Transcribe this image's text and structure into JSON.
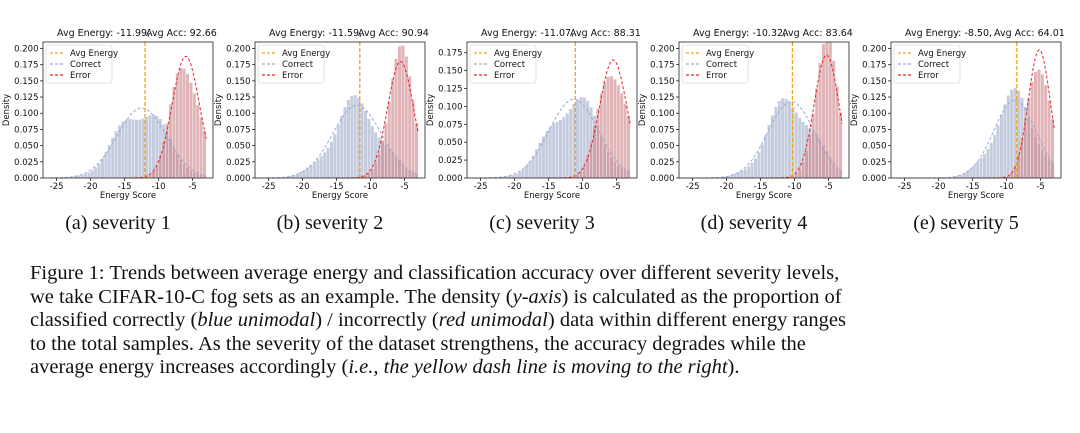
{
  "colors": {
    "correct_fill": "#b4bed5",
    "error_fill": "#cf888d",
    "correct_line": "#9aa9d6",
    "error_line": "#e0282b",
    "avg_energy_line": "#f0a41e",
    "axis": "#222222"
  },
  "chart_data": [
    {
      "type": "bar",
      "subcaption": "(a) severity 1",
      "annotation_energy": "Avg Energy: -11.99,",
      "annotation_acc": "Avg Acc: 92.66",
      "avg_energy": -11.99,
      "avg_acc": 92.66,
      "xlabel": "Energy Score",
      "ylabel": "Density",
      "xlim": [
        -27,
        -2
      ],
      "ylim": [
        0,
        0.21
      ],
      "xticks": [
        -25,
        -20,
        -15,
        -10,
        -5
      ],
      "yticks": [
        0.0,
        0.025,
        0.05,
        0.075,
        0.1,
        0.125,
        0.15,
        0.175,
        0.2
      ],
      "ytick_labels": [
        "0.000",
        "0.025",
        "0.050",
        "0.075",
        "0.100",
        "0.125",
        "0.150",
        "0.175",
        "0.200"
      ],
      "legend": [
        "Avg Energy",
        "Correct",
        "Error"
      ],
      "legend_position": "top-left",
      "series": [
        {
          "name": "Correct",
          "mean": -12.5,
          "sd": 3.6,
          "peak": 0.108,
          "range": [
            -26,
            -3
          ]
        },
        {
          "name": "Error",
          "mean": -6.0,
          "sd": 2.0,
          "peak": 0.188,
          "range": [
            -15,
            -3
          ]
        }
      ]
    },
    {
      "type": "bar",
      "subcaption": "(b) severity 2",
      "annotation_energy": "Avg Energy: -11.59,",
      "annotation_acc": "Avg Acc: 90.94",
      "avg_energy": -11.59,
      "avg_acc": 90.94,
      "xlabel": "Energy Score",
      "ylabel": "Density",
      "xlim": [
        -27,
        -2
      ],
      "ylim": [
        0,
        0.21
      ],
      "xticks": [
        -25,
        -20,
        -15,
        -10,
        -5
      ],
      "yticks": [
        0.0,
        0.025,
        0.05,
        0.075,
        0.1,
        0.125,
        0.15,
        0.175,
        0.2
      ],
      "ytick_labels": [
        "0.000",
        "0.025",
        "0.050",
        "0.075",
        "0.100",
        "0.125",
        "0.150",
        "0.175",
        "0.200"
      ],
      "legend": [
        "Avg Energy",
        "Correct",
        "Error"
      ],
      "legend_position": "top-left",
      "series": [
        {
          "name": "Correct",
          "mean": -12.0,
          "sd": 3.6,
          "peak": 0.112,
          "range": [
            -26,
            -3
          ]
        },
        {
          "name": "Error",
          "mean": -5.6,
          "sd": 1.9,
          "peak": 0.18,
          "range": [
            -15,
            -3
          ]
        }
      ]
    },
    {
      "type": "bar",
      "subcaption": "(c) severity 3",
      "annotation_energy": "Avg Energy: -11.07,",
      "annotation_acc": "Avg Acc: 88.31",
      "avg_energy": -11.07,
      "avg_acc": 88.31,
      "xlabel": "Energy Score",
      "ylabel": "Density",
      "xlim": [
        -27,
        -2
      ],
      "ylim": [
        0,
        0.19
      ],
      "xticks": [
        -25,
        -20,
        -15,
        -10,
        -5
      ],
      "yticks": [
        0.0,
        0.025,
        0.05,
        0.075,
        0.1,
        0.125,
        0.15,
        0.175
      ],
      "ytick_labels": [
        "0.000",
        "0.025",
        "0.050",
        "0.075",
        "0.100",
        "0.125",
        "0.150",
        "0.175"
      ],
      "legend": [
        "Avg Energy",
        "Correct",
        "Error"
      ],
      "legend_position": "top-left",
      "series": [
        {
          "name": "Correct",
          "mean": -11.3,
          "sd": 3.6,
          "peak": 0.11,
          "range": [
            -26,
            -3
          ]
        },
        {
          "name": "Error",
          "mean": -5.5,
          "sd": 2.0,
          "peak": 0.165,
          "range": [
            -15,
            -3
          ]
        }
      ]
    },
    {
      "type": "bar",
      "subcaption": "(d) severity 4",
      "annotation_energy": "Avg Energy: -10.32,",
      "annotation_acc": "Avg Acc: 83.64",
      "avg_energy": -10.32,
      "avg_acc": 83.64,
      "xlabel": "Energy Score",
      "ylabel": "Density",
      "xlim": [
        -27,
        -2
      ],
      "ylim": [
        0,
        0.21
      ],
      "xticks": [
        -25,
        -20,
        -15,
        -10,
        -5
      ],
      "yticks": [
        0.0,
        0.025,
        0.05,
        0.075,
        0.1,
        0.125,
        0.15,
        0.175,
        0.2
      ],
      "ytick_labels": [
        "0.000",
        "0.025",
        "0.050",
        "0.075",
        "0.100",
        "0.125",
        "0.150",
        "0.175",
        "0.200"
      ],
      "legend": [
        "Avg Energy",
        "Correct",
        "Error"
      ],
      "legend_position": "top-left",
      "series": [
        {
          "name": "Correct",
          "mean": -10.5,
          "sd": 3.4,
          "peak": 0.118,
          "range": [
            -26,
            -3
          ]
        },
        {
          "name": "Error",
          "mean": -5.3,
          "sd": 1.8,
          "peak": 0.19,
          "range": [
            -15,
            -3
          ]
        }
      ]
    },
    {
      "type": "bar",
      "subcaption": "(e) severity 5",
      "annotation_energy": "Avg Energy: -8.50,",
      "annotation_acc": "Avg Acc: 64.01",
      "avg_energy": -8.5,
      "avg_acc": 64.01,
      "xlabel": "Energy Score",
      "ylabel": "Density",
      "xlim": [
        -27,
        -2
      ],
      "ylim": [
        0,
        0.21
      ],
      "xticks": [
        -25,
        -20,
        -15,
        -10,
        -5
      ],
      "yticks": [
        0.0,
        0.025,
        0.05,
        0.075,
        0.1,
        0.125,
        0.15,
        0.175,
        0.2
      ],
      "ytick_labels": [
        "0.000",
        "0.025",
        "0.050",
        "0.075",
        "0.100",
        "0.125",
        "0.150",
        "0.175",
        "0.200"
      ],
      "legend": [
        "Avg Energy",
        "Correct",
        "Error"
      ],
      "legend_position": "top-left",
      "series": [
        {
          "name": "Correct",
          "mean": -8.8,
          "sd": 3.1,
          "peak": 0.12,
          "range": [
            -26,
            -3
          ]
        },
        {
          "name": "Error",
          "mean": -5.2,
          "sd": 1.6,
          "peak": 0.198,
          "range": [
            -15,
            -3
          ]
        }
      ]
    }
  ],
  "caption": {
    "line1": "Figure 1: Trends between average energy and classification accuracy over different severity levels,",
    "line2a": "we take CIFAR-10-C fog sets as an example. The density (",
    "line2_italic": "y-axis",
    "line2b": ") is calculated as the proportion of",
    "line3a": "classified correctly (",
    "line3_italic1": "blue unimodal",
    "line3b": ") / incorrectly (",
    "line3_italic2": "red unimodal",
    "line3c": ") data within different energy ranges",
    "line4": "to the total samples.  As the severity of the dataset strengthens, the accuracy degrades while the",
    "line5a": "average energy increases accordingly (",
    "line5_italic": "i.e., the yellow dash line is moving to the right",
    "line5b": ")."
  }
}
